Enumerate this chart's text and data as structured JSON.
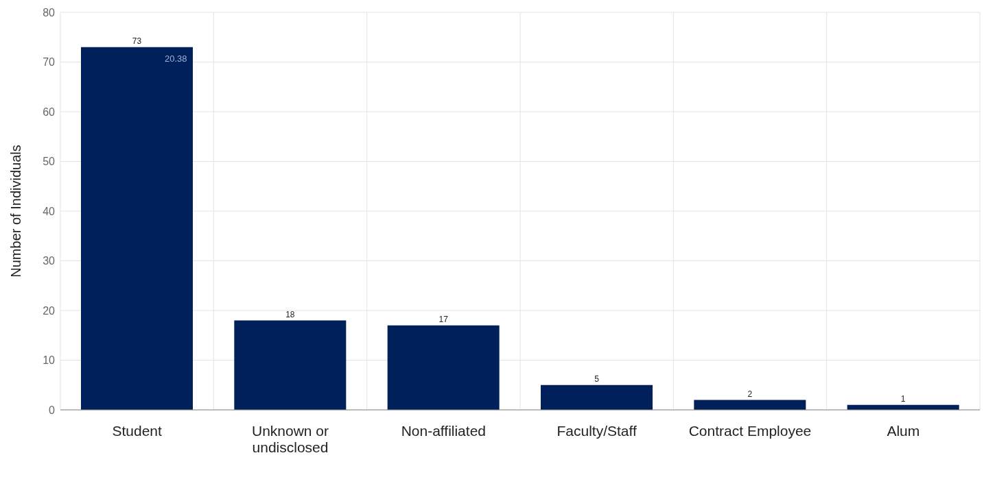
{
  "chart_data": {
    "type": "bar",
    "ylabel": "Number of Individuals",
    "categories": [
      "Student",
      "Unknown or undisclosed",
      "Non-affiliated",
      "Faculty/Staff",
      "Contract Employee",
      "Alum"
    ],
    "values": [
      73,
      18,
      17,
      5,
      2,
      1
    ],
    "color": "#00205b",
    "ylim": [
      0,
      80
    ],
    "yticks": [
      0,
      10,
      20,
      30,
      40,
      50,
      60,
      70,
      80
    ],
    "grid": true,
    "data_labels": true,
    "annotations": [
      "20.38"
    ]
  }
}
